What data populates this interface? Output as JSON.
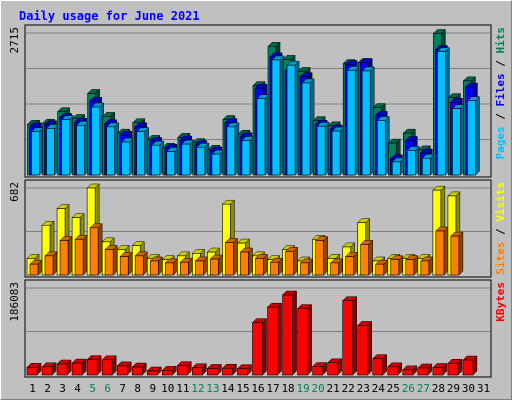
{
  "chart_data": [
    {
      "type": "bar",
      "title": "Daily usage for June 2021",
      "panel": "hits-files-pages",
      "y_max_label": "2715",
      "ylim": [
        0,
        2715
      ],
      "categories": [
        "1",
        "2",
        "3",
        "4",
        "5",
        "6",
        "7",
        "8",
        "9",
        "10",
        "11",
        "12",
        "13",
        "14",
        "15",
        "16",
        "17",
        "18",
        "19",
        "20",
        "21",
        "22",
        "23",
        "24",
        "25",
        "26",
        "27",
        "28",
        "29",
        "30",
        "31"
      ],
      "series": [
        {
          "name": "Hits",
          "color": "#00805c",
          "values": [
            970,
            990,
            1210,
            1080,
            1560,
            1120,
            800,
            1000,
            680,
            530,
            720,
            620,
            490,
            1060,
            780,
            1710,
            2460,
            2210,
            1980,
            1040,
            940,
            2130,
            2150,
            1290,
            610,
            800,
            480,
            2705,
            1480,
            1800,
            0
          ]
        },
        {
          "name": "Files",
          "color": "#0000ff",
          "values": [
            920,
            960,
            1100,
            1010,
            1410,
            980,
            760,
            920,
            640,
            510,
            670,
            580,
            460,
            1000,
            730,
            1660,
            2260,
            1990,
            1880,
            970,
            880,
            2110,
            2150,
            1140,
            310,
            660,
            420,
            2400,
            1390,
            1680,
            0
          ]
        },
        {
          "name": "Pages",
          "color": "#00c0ff",
          "values": [
            830,
            890,
            1060,
            950,
            1300,
            920,
            630,
            830,
            570,
            450,
            590,
            530,
            400,
            920,
            660,
            1460,
            2200,
            2100,
            1760,
            930,
            840,
            2000,
            1990,
            1040,
            250,
            470,
            320,
            2360,
            1270,
            1420,
            0
          ]
        }
      ],
      "axis_label": [
        "Pages",
        "Files",
        "Hits"
      ]
    },
    {
      "type": "bar",
      "panel": "visits-sites",
      "y_max_label": "682",
      "ylim": [
        0,
        682
      ],
      "categories": [
        "1",
        "2",
        "3",
        "4",
        "5",
        "6",
        "7",
        "8",
        "9",
        "10",
        "11",
        "12",
        "13",
        "14",
        "15",
        "16",
        "17",
        "18",
        "19",
        "20",
        "21",
        "22",
        "23",
        "24",
        "25",
        "26",
        "27",
        "28",
        "29",
        "30",
        "31"
      ],
      "series": [
        {
          "name": "Visits",
          "color": "#ffff00",
          "values": [
            130,
            390,
            520,
            450,
            682,
            260,
            200,
            230,
            130,
            120,
            150,
            170,
            180,
            555,
            250,
            150,
            120,
            200,
            110,
            280,
            130,
            220,
            410,
            110,
            130,
            130,
            130,
            665,
            620,
            0,
            0
          ]
        },
        {
          "name": "Sites",
          "color": "#ff8000",
          "values": [
            85,
            150,
            270,
            280,
            370,
            200,
            145,
            150,
            110,
            95,
            100,
            110,
            125,
            255,
            180,
            130,
            100,
            185,
            95,
            270,
            95,
            145,
            240,
            85,
            120,
            120,
            110,
            345,
            305,
            0,
            0
          ]
        }
      ],
      "axis_label": [
        "Sites",
        "Visits"
      ]
    },
    {
      "type": "bar",
      "panel": "kbytes",
      "y_max_label": "186083",
      "ylim": [
        0,
        186083
      ],
      "categories": [
        "1",
        "2",
        "3",
        "4",
        "5",
        "6",
        "7",
        "8",
        "9",
        "10",
        "11",
        "12",
        "13",
        "14",
        "15",
        "16",
        "17",
        "18",
        "19",
        "20",
        "21",
        "22",
        "23",
        "24",
        "25",
        "26",
        "27",
        "28",
        "29",
        "30",
        "31"
      ],
      "series": [
        {
          "name": "KBytes",
          "color": "#ff0000",
          "values": [
            16500,
            17500,
            23500,
            25500,
            33000,
            32500,
            19500,
            17000,
            8500,
            10000,
            20000,
            15500,
            14000,
            14500,
            13500,
            112000,
            145000,
            171000,
            142000,
            18000,
            26000,
            159000,
            106000,
            35000,
            17500,
            11000,
            15000,
            16000,
            25000,
            32000,
            0
          ]
        }
      ],
      "axis_label": [
        "KBytes"
      ]
    }
  ],
  "day_label_colors": {
    "weekday": "#000000",
    "weekend": "#00805c",
    "weekend_days": [
      "5",
      "6",
      "12",
      "13",
      "19",
      "20",
      "26",
      "27"
    ]
  },
  "colors": {
    "title": "#0000ff",
    "panel_bg": "#c0c0c0",
    "gridline": "#808080",
    "axis_value": "#000000"
  }
}
